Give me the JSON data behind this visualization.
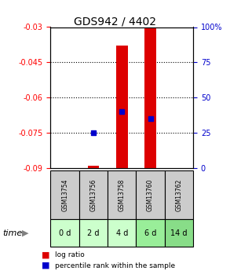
{
  "title": "GDS942 / 4402",
  "samples": [
    "GSM13754",
    "GSM13756",
    "GSM13758",
    "GSM13760",
    "GSM13762"
  ],
  "time_labels": [
    "0 d",
    "2 d",
    "4 d",
    "6 d",
    "14 d"
  ],
  "log_ratios": [
    null,
    -0.089,
    -0.038,
    -0.03,
    null
  ],
  "percentile_ranks": [
    null,
    25,
    40,
    35,
    null
  ],
  "ylim_left": [
    -0.09,
    -0.03
  ],
  "ylim_right": [
    0,
    100
  ],
  "left_ticks": [
    -0.03,
    -0.045,
    -0.06,
    -0.075,
    -0.09
  ],
  "right_ticks": [
    0,
    25,
    50,
    75,
    100
  ],
  "left_tick_color": "#ff0000",
  "right_tick_color": "#0000cc",
  "bar_color": "#dd0000",
  "dot_color": "#0000cc",
  "grid_color": "#000000",
  "bg_color": "#ffffff",
  "sample_bg": "#cccccc",
  "time_bg_colors": [
    "#ccffcc",
    "#ccffcc",
    "#ccffcc",
    "#99ee99",
    "#88dd88"
  ],
  "bar_width": 0.4,
  "figsize": [
    2.93,
    3.45
  ],
  "dpi": 100
}
